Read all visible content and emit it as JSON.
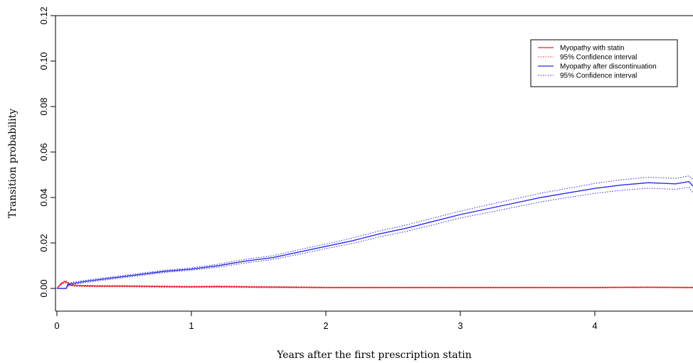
{
  "chart_data": {
    "type": "line",
    "title": "",
    "xlabel": "Years after the first prescription statin",
    "ylabel": "Transition probability",
    "xlim": [
      0,
      4.8
    ],
    "ylim": [
      -0.01,
      0.12
    ],
    "x_ticks": [
      "0",
      "1",
      "2",
      "3",
      "4"
    ],
    "y_ticks": [
      "0.00",
      "0.02",
      "0.04",
      "0.06",
      "0.08",
      "0.10",
      "0.12"
    ],
    "grid": false,
    "legend_position": "top-right",
    "colors": {
      "statin": "#e8202a",
      "discontinuation": "#2a2ae8"
    },
    "legend": [
      {
        "label": "Myopathy with statin",
        "style": "solid",
        "color": "#e8202a"
      },
      {
        "label": "95% Confidence interval",
        "style": "dotted",
        "color": "#e8202a"
      },
      {
        "label": "Myopathy after discontinuation",
        "style": "solid",
        "color": "#2a2ae8"
      },
      {
        "label": "95% Confidence interval",
        "style": "dotted",
        "color": "#2a2ae8"
      }
    ],
    "series": [
      {
        "name": "Myopathy with statin",
        "color": "#e8202a",
        "x": [
          0,
          0.03,
          0.06,
          0.08,
          0.1,
          0.15,
          0.3,
          0.5,
          0.8,
          1.0,
          1.2,
          1.5,
          2.0,
          2.5,
          3.0,
          3.5,
          4.0,
          4.4,
          4.8
        ],
        "y": [
          0.0,
          0.002,
          0.003,
          0.0025,
          0.0015,
          0.0012,
          0.001,
          0.001,
          0.0008,
          0.0007,
          0.0008,
          0.0006,
          0.0004,
          0.0004,
          0.0004,
          0.0004,
          0.0004,
          0.0005,
          0.0004
        ],
        "ci_lower": [
          0.0,
          0.0015,
          0.0025,
          0.002,
          0.0011,
          0.0009,
          0.0007,
          0.0007,
          0.0005,
          0.0004,
          0.0005,
          0.0003,
          0.0002,
          0.0002,
          0.0002,
          0.0002,
          0.0002,
          0.0003,
          0.0002
        ],
        "ci_upper": [
          0.0,
          0.0025,
          0.0035,
          0.003,
          0.0019,
          0.0015,
          0.0013,
          0.0013,
          0.0011,
          0.001,
          0.0011,
          0.0009,
          0.0006,
          0.0006,
          0.0006,
          0.0006,
          0.0006,
          0.0007,
          0.0006
        ]
      },
      {
        "name": "Myopathy after discontinuation",
        "color": "#2a2ae8",
        "x": [
          0,
          0.07,
          0.08,
          0.1,
          0.2,
          0.4,
          0.6,
          0.8,
          1.0,
          1.2,
          1.4,
          1.6,
          1.8,
          2.0,
          2.2,
          2.4,
          2.6,
          2.8,
          3.0,
          3.2,
          3.4,
          3.6,
          3.8,
          4.0,
          4.2,
          4.4,
          4.6,
          4.7,
          4.8
        ],
        "y": [
          0,
          0,
          0.0015,
          0.002,
          0.003,
          0.0045,
          0.006,
          0.0075,
          0.0085,
          0.01,
          0.012,
          0.0135,
          0.016,
          0.0185,
          0.021,
          0.024,
          0.0265,
          0.0295,
          0.0325,
          0.035,
          0.0375,
          0.04,
          0.042,
          0.044,
          0.0455,
          0.0465,
          0.046,
          0.047,
          0.045
        ],
        "ci_lower": [
          0,
          0,
          0.001,
          0.0015,
          0.0025,
          0.004,
          0.0055,
          0.007,
          0.008,
          0.0093,
          0.0112,
          0.0127,
          0.015,
          0.0175,
          0.0198,
          0.0227,
          0.0251,
          0.028,
          0.031,
          0.0333,
          0.0357,
          0.0381,
          0.04,
          0.0418,
          0.0432,
          0.0441,
          0.0436,
          0.0445,
          0.042
        ],
        "ci_upper": [
          0,
          0,
          0.002,
          0.0025,
          0.0035,
          0.005,
          0.0065,
          0.008,
          0.009,
          0.0107,
          0.0128,
          0.0143,
          0.017,
          0.0195,
          0.0222,
          0.0253,
          0.0279,
          0.031,
          0.034,
          0.0367,
          0.0393,
          0.0419,
          0.044,
          0.0462,
          0.0478,
          0.0489,
          0.0484,
          0.0495,
          0.048
        ]
      }
    ]
  }
}
